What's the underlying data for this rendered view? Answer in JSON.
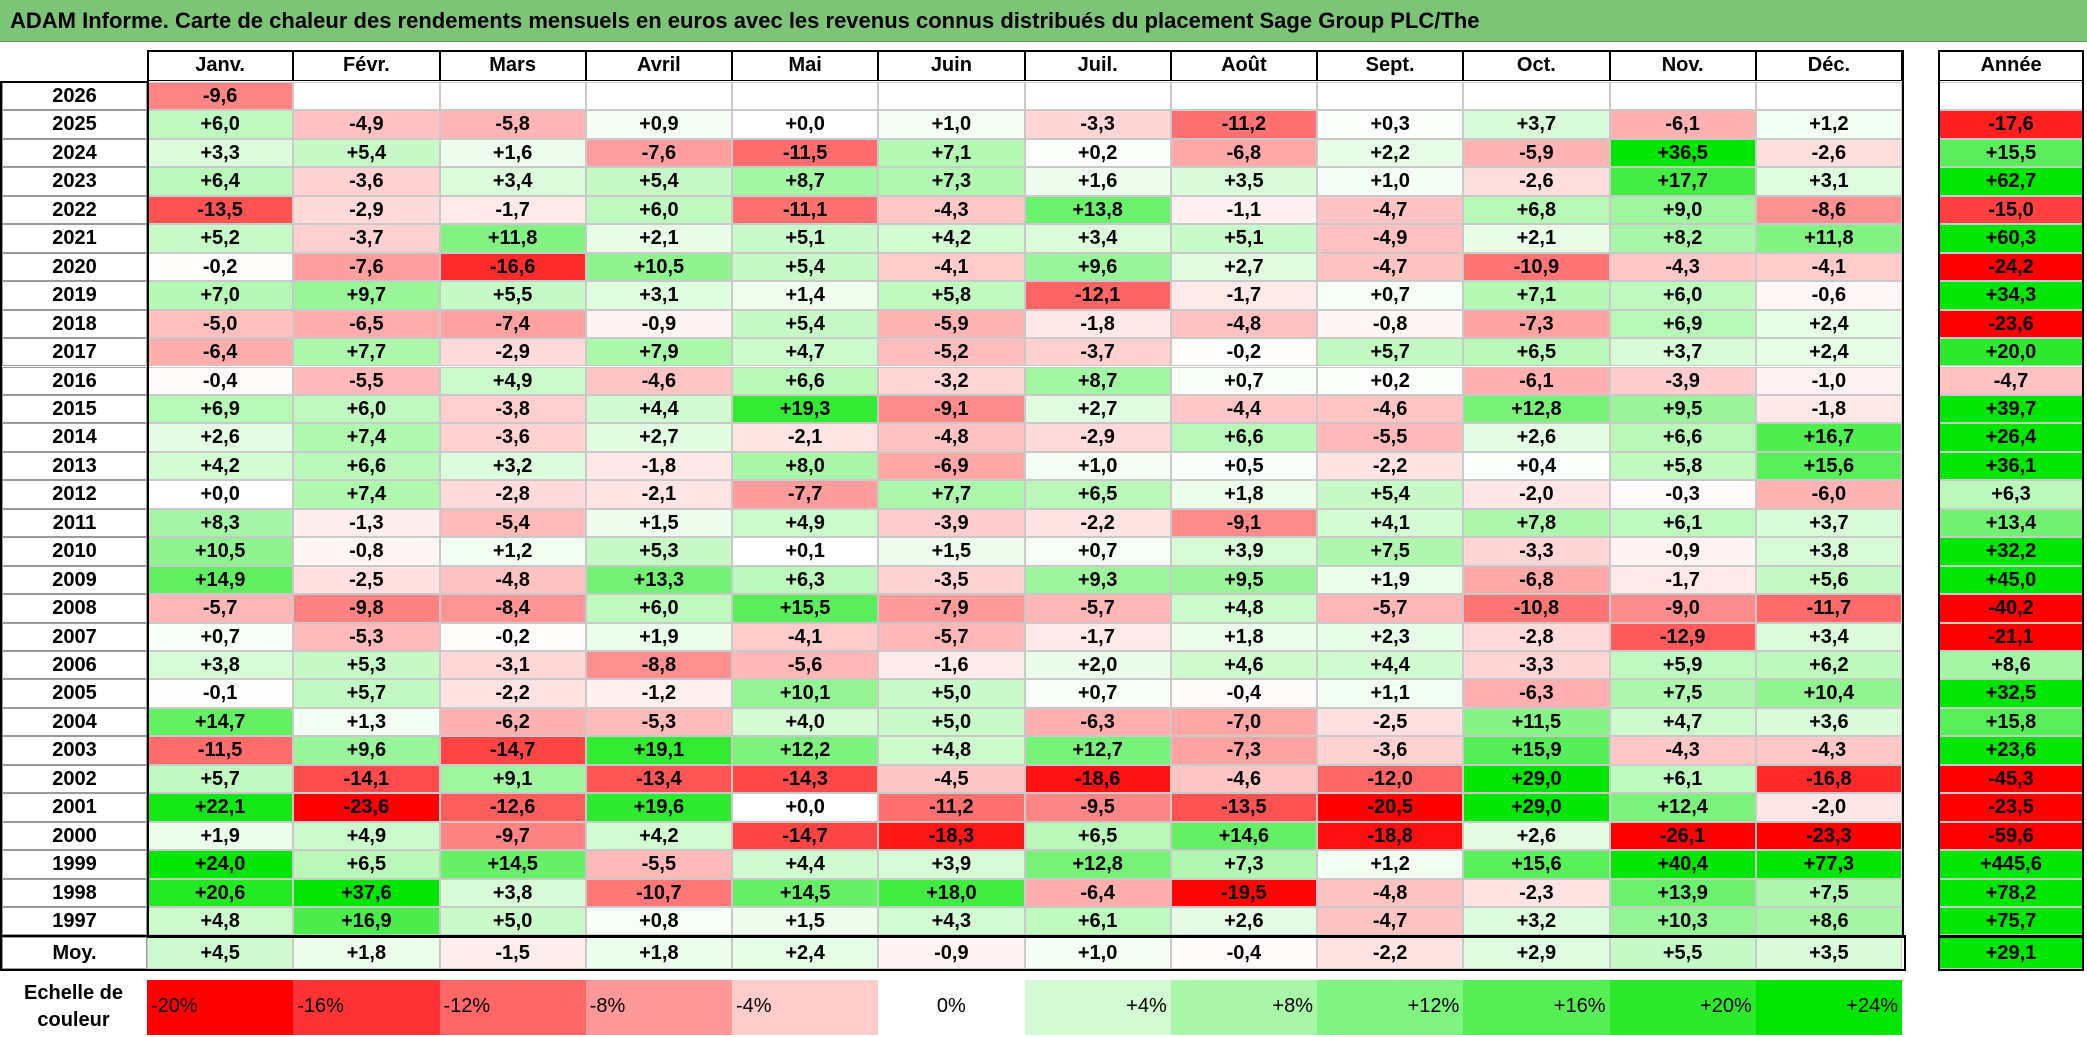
{
  "title": "ADAM Informe. Carte de chaleur des rendements mensuels en euros avec les revenus connus distribués du placement Sage Group PLC/The",
  "chart_data": {
    "type": "heatmap",
    "months": [
      "Janv.",
      "Févr.",
      "Mars",
      "Avril",
      "Mai",
      "Juin",
      "Juil.",
      "Août",
      "Sept.",
      "Oct.",
      "Nov.",
      "Déc."
    ],
    "year_column_label": "Année",
    "rows": [
      {
        "year": "2026",
        "months": [
          "-9,6",
          "",
          "",
          "",
          "",
          "",
          "",
          "",
          "",
          "",
          "",
          ""
        ],
        "annual": ""
      },
      {
        "year": "2025",
        "months": [
          "+6,0",
          "-4,9",
          "-5,8",
          "+0,9",
          "+0,0",
          "+1,0",
          "-3,3",
          "-11,2",
          "+0,3",
          "+3,7",
          "-6,1",
          "+1,2"
        ],
        "annual": "-17,6"
      },
      {
        "year": "2024",
        "months": [
          "+3,3",
          "+5,4",
          "+1,6",
          "-7,6",
          "-11,5",
          "+7,1",
          "+0,2",
          "-6,8",
          "+2,2",
          "-5,9",
          "+36,5",
          "-2,6"
        ],
        "annual": "+15,5"
      },
      {
        "year": "2023",
        "months": [
          "+6,4",
          "-3,6",
          "+3,4",
          "+5,4",
          "+8,7",
          "+7,3",
          "+1,6",
          "+3,5",
          "+1,0",
          "-2,6",
          "+17,7",
          "+3,1"
        ],
        "annual": "+62,7"
      },
      {
        "year": "2022",
        "months": [
          "-13,5",
          "-2,9",
          "-1,7",
          "+6,0",
          "-11,1",
          "-4,3",
          "+13,8",
          "-1,1",
          "-4,7",
          "+6,8",
          "+9,0",
          "-8,6"
        ],
        "annual": "-15,0"
      },
      {
        "year": "2021",
        "months": [
          "+5,2",
          "-3,7",
          "+11,8",
          "+2,1",
          "+5,1",
          "+4,2",
          "+3,4",
          "+5,1",
          "-4,9",
          "+2,1",
          "+8,2",
          "+11,8"
        ],
        "annual": "+60,3"
      },
      {
        "year": "2020",
        "months": [
          "-0,2",
          "-7,6",
          "-16,6",
          "+10,5",
          "+5,4",
          "-4,1",
          "+9,6",
          "+2,7",
          "-4,7",
          "-10,9",
          "-4,3",
          "-4,1"
        ],
        "annual": "-24,2"
      },
      {
        "year": "2019",
        "months": [
          "+7,0",
          "+9,7",
          "+5,5",
          "+3,1",
          "+1,4",
          "+5,8",
          "-12,1",
          "-1,7",
          "+0,7",
          "+7,1",
          "+6,0",
          "-0,6"
        ],
        "annual": "+34,3"
      },
      {
        "year": "2018",
        "months": [
          "-5,0",
          "-6,5",
          "-7,4",
          "-0,9",
          "+5,4",
          "-5,9",
          "-1,8",
          "-4,8",
          "-0,8",
          "-7,3",
          "+6,9",
          "+2,4"
        ],
        "annual": "-23,6"
      },
      {
        "year": "2017",
        "months": [
          "-6,4",
          "+7,7",
          "-2,9",
          "+7,9",
          "+4,7",
          "-5,2",
          "-3,7",
          "-0,2",
          "+5,7",
          "+6,5",
          "+3,7",
          "+2,4"
        ],
        "annual": "+20,0"
      },
      {
        "year": "2016",
        "months": [
          "-0,4",
          "-5,5",
          "+4,9",
          "-4,6",
          "+6,6",
          "-3,2",
          "+8,7",
          "+0,7",
          "+0,2",
          "-6,1",
          "-3,9",
          "-1,0"
        ],
        "annual": "-4,7"
      },
      {
        "year": "2015",
        "months": [
          "+6,9",
          "+6,0",
          "-3,8",
          "+4,4",
          "+19,3",
          "-9,1",
          "+2,7",
          "-4,4",
          "-4,6",
          "+12,8",
          "+9,5",
          "-1,8"
        ],
        "annual": "+39,7"
      },
      {
        "year": "2014",
        "months": [
          "+2,6",
          "+7,4",
          "-3,6",
          "+2,7",
          "-2,1",
          "-4,8",
          "-2,9",
          "+6,6",
          "-5,5",
          "+2,6",
          "+6,6",
          "+16,7"
        ],
        "annual": "+26,4"
      },
      {
        "year": "2013",
        "months": [
          "+4,2",
          "+6,6",
          "+3,2",
          "-1,8",
          "+8,0",
          "-6,9",
          "+1,0",
          "+0,5",
          "-2,2",
          "+0,4",
          "+5,8",
          "+15,6"
        ],
        "annual": "+36,1"
      },
      {
        "year": "2012",
        "months": [
          "+0,0",
          "+7,4",
          "-2,8",
          "-2,1",
          "-7,7",
          "+7,7",
          "+6,5",
          "+1,8",
          "+5,4",
          "-2,0",
          "-0,3",
          "-6,0"
        ],
        "annual": "+6,3"
      },
      {
        "year": "2011",
        "months": [
          "+8,3",
          "-1,3",
          "-5,4",
          "+1,5",
          "+4,9",
          "-3,9",
          "-2,2",
          "-9,1",
          "+4,1",
          "+7,8",
          "+6,1",
          "+3,7"
        ],
        "annual": "+13,4"
      },
      {
        "year": "2010",
        "months": [
          "+10,5",
          "-0,8",
          "+1,2",
          "+5,3",
          "+0,1",
          "+1,5",
          "+0,7",
          "+3,9",
          "+7,5",
          "-3,3",
          "-0,9",
          "+3,8"
        ],
        "annual": "+32,2"
      },
      {
        "year": "2009",
        "months": [
          "+14,9",
          "-2,5",
          "-4,8",
          "+13,3",
          "+6,3",
          "-3,5",
          "+9,3",
          "+9,5",
          "+1,9",
          "-6,8",
          "-1,7",
          "+5,6"
        ],
        "annual": "+45,0"
      },
      {
        "year": "2008",
        "months": [
          "-5,7",
          "-9,8",
          "-8,4",
          "+6,0",
          "+15,5",
          "-7,9",
          "-5,7",
          "+4,8",
          "-5,7",
          "-10,8",
          "-9,0",
          "-11,7"
        ],
        "annual": "-40,2"
      },
      {
        "year": "2007",
        "months": [
          "+0,7",
          "-5,3",
          "-0,2",
          "+1,9",
          "-4,1",
          "-5,7",
          "-1,7",
          "+1,8",
          "+2,3",
          "-2,8",
          "-12,9",
          "+3,4"
        ],
        "annual": "-21,1"
      },
      {
        "year": "2006",
        "months": [
          "+3,8",
          "+5,3",
          "-3,1",
          "-8,8",
          "-5,6",
          "-1,6",
          "+2,0",
          "+4,6",
          "+4,4",
          "-3,3",
          "+5,9",
          "+6,2"
        ],
        "annual": "+8,6"
      },
      {
        "year": "2005",
        "months": [
          "-0,1",
          "+5,7",
          "-2,2",
          "-1,2",
          "+10,1",
          "+5,0",
          "+0,7",
          "-0,4",
          "+1,1",
          "-6,3",
          "+7,5",
          "+10,4"
        ],
        "annual": "+32,5"
      },
      {
        "year": "2004",
        "months": [
          "+14,7",
          "+1,3",
          "-6,2",
          "-5,3",
          "+4,0",
          "+5,0",
          "-6,3",
          "-7,0",
          "-2,5",
          "+11,5",
          "+4,7",
          "+3,6"
        ],
        "annual": "+15,8"
      },
      {
        "year": "2003",
        "months": [
          "-11,5",
          "+9,6",
          "-14,7",
          "+19,1",
          "+12,2",
          "+4,8",
          "+12,7",
          "-7,3",
          "-3,6",
          "+15,9",
          "-4,3",
          "-4,3"
        ],
        "annual": "+23,6"
      },
      {
        "year": "2002",
        "months": [
          "+5,7",
          "-14,1",
          "+9,1",
          "-13,4",
          "-14,3",
          "-4,5",
          "-18,6",
          "-4,6",
          "-12,0",
          "+29,0",
          "+6,1",
          "-16,8"
        ],
        "annual": "-45,3"
      },
      {
        "year": "2001",
        "months": [
          "+22,1",
          "-23,6",
          "-12,6",
          "+19,6",
          "+0,0",
          "-11,2",
          "-9,5",
          "-13,5",
          "-20,5",
          "+29,0",
          "+12,4",
          "-2,0"
        ],
        "annual": "-23,5"
      },
      {
        "year": "2000",
        "months": [
          "+1,9",
          "+4,9",
          "-9,7",
          "+4,2",
          "-14,7",
          "-18,3",
          "+6,5",
          "+14,6",
          "-18,8",
          "+2,6",
          "-26,1",
          "-23,3"
        ],
        "annual": "-59,6"
      },
      {
        "year": "1999",
        "months": [
          "+24,0",
          "+6,5",
          "+14,5",
          "-5,5",
          "+4,4",
          "+3,9",
          "+12,8",
          "+7,3",
          "+1,2",
          "+15,6",
          "+40,4",
          "+77,3"
        ],
        "annual": "+445,6"
      },
      {
        "year": "1998",
        "months": [
          "+20,6",
          "+37,6",
          "+3,8",
          "-10,7",
          "+14,5",
          "+18,0",
          "-6,4",
          "-19,5",
          "-4,8",
          "-2,3",
          "+13,9",
          "+7,5"
        ],
        "annual": "+78,2"
      },
      {
        "year": "1997",
        "months": [
          "+4,8",
          "+16,9",
          "+5,0",
          "+0,8",
          "+1,5",
          "+4,3",
          "+6,1",
          "+2,6",
          "-4,7",
          "+3,2",
          "+10,3",
          "+8,6"
        ],
        "annual": "+75,7"
      }
    ],
    "average": {
      "label": "Moy.",
      "months": [
        "+4,5",
        "+1,8",
        "-1,5",
        "+1,8",
        "+2,4",
        "-0,9",
        "+1,0",
        "-0,4",
        "-2,2",
        "+2,9",
        "+5,5",
        "+3,5"
      ],
      "annual": "+29,1"
    },
    "color_scale": {
      "title_line1": "Echelle de",
      "title_line2": "couleur",
      "stops": [
        "-20%",
        "-16%",
        "-12%",
        "-8%",
        "-4%",
        "0%",
        "+4%",
        "+8%",
        "+12%",
        "+16%",
        "+20%",
        "+24%"
      ],
      "stop_values": [
        -20,
        -16,
        -12,
        -8,
        -4,
        0,
        4,
        8,
        12,
        16,
        20,
        24
      ],
      "negative_color": "#ff0000",
      "positive_color": "#00e600",
      "neutral_color": "#ffffff"
    }
  }
}
